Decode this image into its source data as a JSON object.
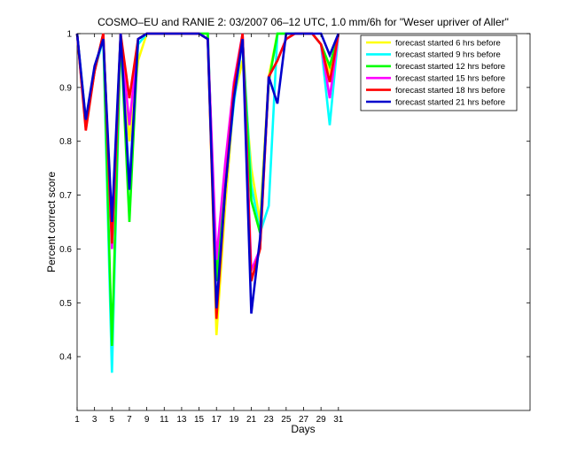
{
  "chart_data": {
    "type": "line",
    "title": "COSMO–EU and RANIE 2: 03/2007 06–12 UTC, 1.0 mm/6h for \"Weser upriver of Aller\"",
    "xlabel": "Days",
    "ylabel": "Percent correct score",
    "xlim": [
      1,
      53
    ],
    "ylim": [
      0.3,
      1.0
    ],
    "xticks": [
      1,
      3,
      5,
      7,
      9,
      11,
      13,
      15,
      17,
      19,
      21,
      23,
      25,
      27,
      29,
      31
    ],
    "yticks": [
      0.4,
      0.5,
      0.6,
      0.7,
      0.8,
      0.9,
      1.0
    ],
    "ytick_labels": [
      "0.4",
      "0.5",
      "0.6",
      "0.7",
      "0.8",
      "0.9",
      "1"
    ],
    "legend_position": "top-right",
    "x": [
      1,
      2,
      3,
      4,
      5,
      6,
      7,
      8,
      9,
      10,
      11,
      12,
      13,
      14,
      15,
      16,
      17,
      18,
      19,
      20,
      21,
      22,
      23,
      24,
      25,
      26,
      27,
      28,
      29,
      30,
      31
    ],
    "series": [
      {
        "name": "forecast started 6 hrs before",
        "color": "#ffff00",
        "values": [
          1.0,
          0.83,
          0.93,
          1.0,
          0.62,
          1.0,
          0.8,
          0.95,
          1.0,
          1.0,
          1.0,
          1.0,
          1.0,
          1.0,
          1.0,
          1.0,
          0.44,
          0.68,
          0.88,
          0.95,
          0.75,
          0.65,
          0.92,
          1.0,
          1.0,
          1.0,
          1.0,
          1.0,
          0.98,
          0.93,
          1.0
        ]
      },
      {
        "name": "forecast started 9 hrs before",
        "color": "#00ffff",
        "values": [
          1.0,
          0.84,
          0.93,
          0.99,
          0.37,
          1.0,
          0.72,
          0.98,
          1.0,
          1.0,
          1.0,
          1.0,
          1.0,
          1.0,
          1.0,
          1.0,
          0.55,
          0.72,
          0.87,
          0.99,
          0.72,
          0.63,
          0.68,
          1.0,
          1.0,
          1.0,
          1.0,
          1.0,
          0.98,
          0.83,
          1.0
        ]
      },
      {
        "name": "forecast started 12 hrs before",
        "color": "#00ff00",
        "values": [
          1.0,
          0.83,
          0.93,
          1.0,
          0.42,
          1.0,
          0.65,
          0.99,
          1.0,
          1.0,
          1.0,
          1.0,
          1.0,
          1.0,
          1.0,
          1.0,
          0.54,
          0.74,
          0.89,
          0.99,
          0.69,
          0.63,
          0.91,
          1.0,
          1.0,
          1.0,
          1.0,
          1.0,
          0.98,
          0.94,
          1.0
        ]
      },
      {
        "name": "forecast started 15 hrs before",
        "color": "#ff00ff",
        "values": [
          1.0,
          0.83,
          0.93,
          1.0,
          0.6,
          1.0,
          0.83,
          0.99,
          1.0,
          1.0,
          1.0,
          1.0,
          1.0,
          1.0,
          1.0,
          0.99,
          0.58,
          0.76,
          0.91,
          1.0,
          0.56,
          0.6,
          0.92,
          0.95,
          0.99,
          1.0,
          1.0,
          1.0,
          0.98,
          0.88,
          1.0
        ]
      },
      {
        "name": "forecast started 18 hrs before",
        "color": "#ff0000",
        "values": [
          1.0,
          0.82,
          0.93,
          1.0,
          0.61,
          1.0,
          0.88,
          0.99,
          1.0,
          1.0,
          1.0,
          1.0,
          1.0,
          1.0,
          1.0,
          0.99,
          0.47,
          0.71,
          0.9,
          1.0,
          0.54,
          0.6,
          0.92,
          0.95,
          0.99,
          1.0,
          1.0,
          1.0,
          0.98,
          0.91,
          1.0
        ]
      },
      {
        "name": "forecast started 21 hrs before",
        "color": "#0000cc",
        "values": [
          1.0,
          0.84,
          0.94,
          0.99,
          0.65,
          1.0,
          0.71,
          0.99,
          1.0,
          1.0,
          1.0,
          1.0,
          1.0,
          1.0,
          1.0,
          0.99,
          0.49,
          0.71,
          0.88,
          0.99,
          0.48,
          0.62,
          0.92,
          0.87,
          1.0,
          1.0,
          1.0,
          1.0,
          1.0,
          0.96,
          1.0
        ]
      }
    ]
  }
}
